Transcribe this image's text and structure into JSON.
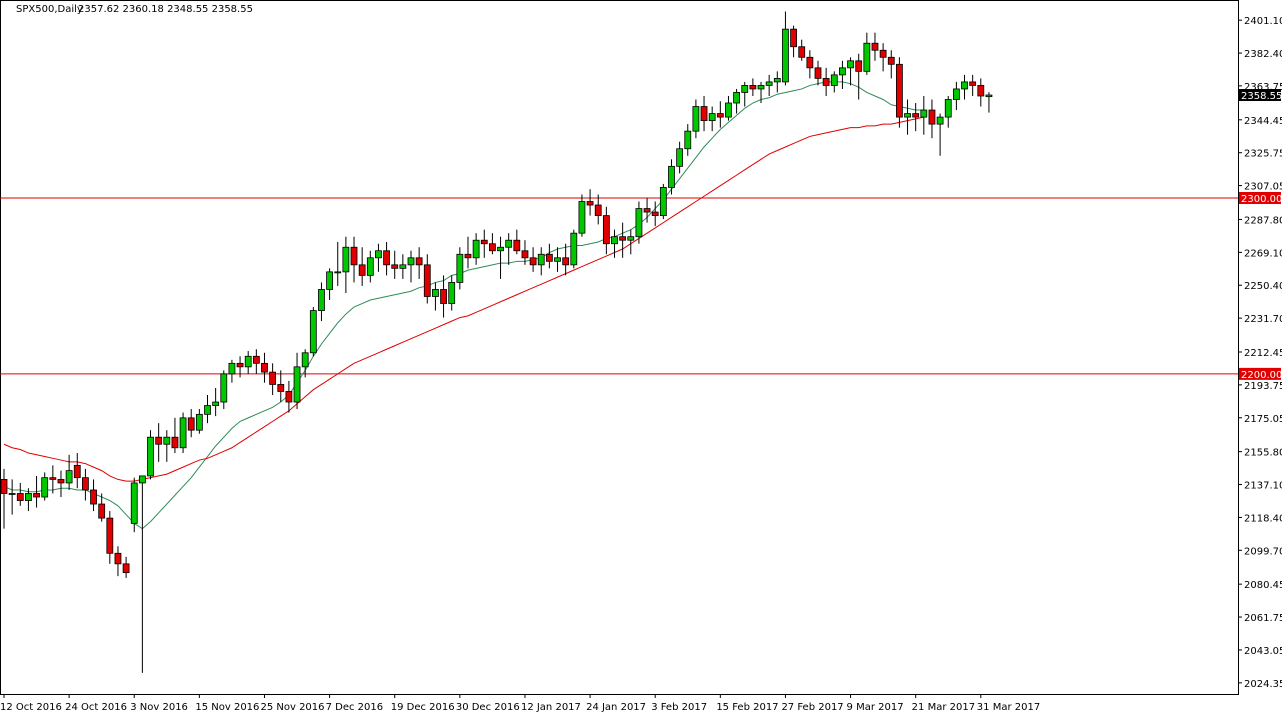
{
  "chart_header": {
    "symbol": "SPX500,Daily",
    "ohlc": "2357.62 2360.18 2348.55 2358.55"
  },
  "colors": {
    "background": "#ffffff",
    "frame": "#000000",
    "bull_body": "#00c800",
    "bear_body": "#e00000",
    "wick": "#000000",
    "ma_fast": "#2e8b57",
    "ma_slow": "#e00000",
    "level_line": "#e00000",
    "price_tag_bg": "#000000",
    "price_tag_fg": "#ffffff",
    "level_tag_bg": "#e00000",
    "level_tag_fg": "#ffffff"
  },
  "chart_data": {
    "type": "candlestick",
    "title": "SPX500,Daily",
    "ylim": [
      2018.0,
      2412.0
    ],
    "y_ticks": [
      "2401.10",
      "2382.40",
      "2363.75",
      "2344.45",
      "2325.75",
      "2307.05",
      "2287.80",
      "2269.10",
      "2250.40",
      "2231.70",
      "2212.45",
      "2193.75",
      "2175.05",
      "2155.80",
      "2137.10",
      "2118.40",
      "2099.70",
      "2080.45",
      "2061.75",
      "2043.05",
      "2024.35"
    ],
    "x_ticks": [
      {
        "index": 0,
        "label": "12 Oct 2016"
      },
      {
        "index": 8,
        "label": "24 Oct 2016"
      },
      {
        "index": 16,
        "label": "3 Nov 2016"
      },
      {
        "index": 24,
        "label": "15 Nov 2016"
      },
      {
        "index": 32,
        "label": "25 Nov 2016"
      },
      {
        "index": 40,
        "label": "7 Dec 2016"
      },
      {
        "index": 48,
        "label": "19 Dec 2016"
      },
      {
        "index": 56,
        "label": "30 Dec 2016"
      },
      {
        "index": 64,
        "label": "12 Jan 2017"
      },
      {
        "index": 72,
        "label": "24 Jan 2017"
      },
      {
        "index": 80,
        "label": "3 Feb 2017"
      },
      {
        "index": 88,
        "label": "15 Feb 2017"
      },
      {
        "index": 96,
        "label": "27 Feb 2017"
      },
      {
        "index": 104,
        "label": "9 Mar 2017"
      },
      {
        "index": 112,
        "label": "21 Mar 2017"
      },
      {
        "index": 120,
        "label": "31 Mar 2017"
      }
    ],
    "horizontal_levels": [
      {
        "value": 2300.0,
        "label": "2300.00"
      },
      {
        "value": 2200.0,
        "label": "2200.00"
      }
    ],
    "current_price": {
      "value": 2358.55,
      "label": "2358.55"
    },
    "candles": [
      [
        2140,
        2146,
        2112,
        2132
      ],
      [
        2132,
        2140,
        2120,
        2132
      ],
      [
        2132,
        2138,
        2125,
        2128
      ],
      [
        2128,
        2135,
        2122,
        2132
      ],
      [
        2132,
        2142,
        2124,
        2130
      ],
      [
        2130,
        2144,
        2128,
        2141
      ],
      [
        2141,
        2148,
        2132,
        2140
      ],
      [
        2140,
        2145,
        2130,
        2138
      ],
      [
        2138,
        2154,
        2134,
        2145
      ],
      [
        2148,
        2155,
        2135,
        2141
      ],
      [
        2141,
        2146,
        2128,
        2134
      ],
      [
        2134,
        2140,
        2122,
        2126
      ],
      [
        2126,
        2132,
        2116,
        2118
      ],
      [
        2118,
        2122,
        2092,
        2098
      ],
      [
        2098,
        2102,
        2085,
        2092
      ],
      [
        2092,
        2096,
        2084,
        2087
      ],
      [
        2115,
        2141,
        2110,
        2138
      ],
      [
        2138,
        2142,
        2030,
        2142
      ],
      [
        2142,
        2168,
        2140,
        2164
      ],
      [
        2164,
        2172,
        2150,
        2160
      ],
      [
        2160,
        2168,
        2150,
        2164
      ],
      [
        2164,
        2175,
        2155,
        2158
      ],
      [
        2158,
        2178,
        2155,
        2175
      ],
      [
        2175,
        2180,
        2164,
        2168
      ],
      [
        2168,
        2180,
        2166,
        2177
      ],
      [
        2177,
        2188,
        2172,
        2182
      ],
      [
        2182,
        2192,
        2176,
        2184
      ],
      [
        2184,
        2202,
        2180,
        2200
      ],
      [
        2200,
        2208,
        2195,
        2206
      ],
      [
        2206,
        2210,
        2198,
        2204
      ],
      [
        2204,
        2213,
        2200,
        2210
      ],
      [
        2210,
        2214,
        2200,
        2206
      ],
      [
        2206,
        2212,
        2195,
        2201
      ],
      [
        2201,
        2206,
        2188,
        2194
      ],
      [
        2194,
        2202,
        2184,
        2190
      ],
      [
        2190,
        2196,
        2178,
        2184
      ],
      [
        2184,
        2212,
        2180,
        2204
      ],
      [
        2204,
        2214,
        2198,
        2212
      ],
      [
        2212,
        2238,
        2210,
        2236
      ],
      [
        2236,
        2252,
        2230,
        2248
      ],
      [
        2248,
        2260,
        2242,
        2258
      ],
      [
        2258,
        2275,
        2250,
        2258
      ],
      [
        2258,
        2278,
        2246,
        2272
      ],
      [
        2272,
        2278,
        2252,
        2262
      ],
      [
        2262,
        2272,
        2250,
        2256
      ],
      [
        2256,
        2270,
        2252,
        2266
      ],
      [
        2266,
        2274,
        2258,
        2270
      ],
      [
        2270,
        2275,
        2256,
        2262
      ],
      [
        2262,
        2270,
        2254,
        2260
      ],
      [
        2260,
        2268,
        2254,
        2262
      ],
      [
        2262,
        2270,
        2252,
        2266
      ],
      [
        2266,
        2272,
        2254,
        2262
      ],
      [
        2262,
        2268,
        2240,
        2244
      ],
      [
        2244,
        2252,
        2236,
        2248
      ],
      [
        2248,
        2256,
        2232,
        2240
      ],
      [
        2240,
        2256,
        2236,
        2252
      ],
      [
        2252,
        2272,
        2248,
        2268
      ],
      [
        2268,
        2278,
        2260,
        2266
      ],
      [
        2266,
        2280,
        2262,
        2276
      ],
      [
        2276,
        2282,
        2266,
        2274
      ],
      [
        2274,
        2280,
        2268,
        2270
      ],
      [
        2270,
        2278,
        2254,
        2272
      ],
      [
        2272,
        2280,
        2262,
        2276
      ],
      [
        2276,
        2282,
        2268,
        2270
      ],
      [
        2270,
        2276,
        2262,
        2266
      ],
      [
        2266,
        2272,
        2258,
        2262
      ],
      [
        2262,
        2272,
        2256,
        2268
      ],
      [
        2268,
        2274,
        2260,
        2264
      ],
      [
        2264,
        2272,
        2258,
        2266
      ],
      [
        2266,
        2274,
        2256,
        2262
      ],
      [
        2262,
        2282,
        2260,
        2280
      ],
      [
        2280,
        2302,
        2278,
        2298
      ],
      [
        2298,
        2305,
        2290,
        2296
      ],
      [
        2296,
        2302,
        2285,
        2290
      ],
      [
        2290,
        2295,
        2268,
        2274
      ],
      [
        2274,
        2282,
        2266,
        2278
      ],
      [
        2278,
        2286,
        2266,
        2276
      ],
      [
        2276,
        2282,
        2268,
        2278
      ],
      [
        2278,
        2298,
        2274,
        2294
      ],
      [
        2294,
        2300,
        2286,
        2292
      ],
      [
        2292,
        2298,
        2284,
        2290
      ],
      [
        2290,
        2308,
        2288,
        2306
      ],
      [
        2306,
        2322,
        2302,
        2318
      ],
      [
        2318,
        2332,
        2314,
        2328
      ],
      [
        2328,
        2342,
        2324,
        2338
      ],
      [
        2338,
        2356,
        2334,
        2352
      ],
      [
        2352,
        2358,
        2338,
        2344
      ],
      [
        2344,
        2352,
        2338,
        2348
      ],
      [
        2348,
        2355,
        2340,
        2346
      ],
      [
        2346,
        2358,
        2344,
        2354
      ],
      [
        2354,
        2362,
        2348,
        2360
      ],
      [
        2360,
        2366,
        2352,
        2364
      ],
      [
        2364,
        2368,
        2358,
        2362
      ],
      [
        2362,
        2366,
        2354,
        2364
      ],
      [
        2364,
        2370,
        2358,
        2366
      ],
      [
        2366,
        2372,
        2360,
        2368
      ],
      [
        2366,
        2406,
        2364,
        2396
      ],
      [
        2396,
        2398,
        2380,
        2386
      ],
      [
        2386,
        2390,
        2378,
        2380
      ],
      [
        2380,
        2384,
        2368,
        2374
      ],
      [
        2374,
        2378,
        2364,
        2368
      ],
      [
        2368,
        2374,
        2358,
        2364
      ],
      [
        2364,
        2372,
        2360,
        2370
      ],
      [
        2370,
        2378,
        2362,
        2374
      ],
      [
        2374,
        2380,
        2364,
        2378
      ],
      [
        2378,
        2382,
        2356,
        2372
      ],
      [
        2372,
        2394,
        2370,
        2388
      ],
      [
        2388,
        2394,
        2378,
        2384
      ],
      [
        2384,
        2388,
        2372,
        2380
      ],
      [
        2380,
        2384,
        2368,
        2376
      ],
      [
        2376,
        2380,
        2340,
        2346
      ],
      [
        2346,
        2356,
        2336,
        2348
      ],
      [
        2348,
        2354,
        2338,
        2346
      ],
      [
        2346,
        2358,
        2336,
        2350
      ],
      [
        2350,
        2356,
        2334,
        2342
      ],
      [
        2342,
        2348,
        2324,
        2346
      ],
      [
        2346,
        2358,
        2340,
        2356
      ],
      [
        2356,
        2366,
        2350,
        2362
      ],
      [
        2362,
        2370,
        2356,
        2366
      ],
      [
        2366,
        2370,
        2358,
        2364
      ],
      [
        2364,
        2368,
        2352,
        2358
      ],
      [
        2357.62,
        2360.18,
        2348.55,
        2358.55
      ]
    ],
    "series": [
      {
        "name": "MA fast",
        "color": "#2e8b57",
        "values": [
          2136,
          2134,
          2134,
          2133,
          2133,
          2134,
          2134,
          2135,
          2135,
          2134,
          2134,
          2132,
          2130,
          2128,
          2125,
          2120,
          2115,
          2112,
          2116,
          2121,
          2126,
          2131,
          2136,
          2141,
          2147,
          2153,
          2159,
          2164,
          2169,
          2173,
          2175,
          2177,
          2179,
          2181,
          2184,
          2188,
          2195,
          2202,
          2210,
          2217,
          2223,
          2229,
          2234,
          2238,
          2240,
          2242,
          2243,
          2244,
          2245,
          2246,
          2247,
          2249,
          2250,
          2252,
          2253,
          2256,
          2257,
          2259,
          2260,
          2261,
          2262,
          2263,
          2263,
          2264,
          2264,
          2265,
          2266,
          2269,
          2271,
          2272,
          2273,
          2273,
          2274,
          2275,
          2277,
          2278,
          2280,
          2282,
          2285,
          2289,
          2294,
          2299,
          2305,
          2311,
          2317,
          2323,
          2329,
          2334,
          2339,
          2343,
          2347,
          2351,
          2354,
          2356,
          2357,
          2359,
          2360,
          2361,
          2362,
          2364,
          2365,
          2366,
          2366,
          2366,
          2365,
          2363,
          2360,
          2358,
          2356,
          2353,
          2352,
          2351,
          2350,
          2350
        ]
      },
      {
        "name": "MA slow",
        "color": "#e00000",
        "values": [
          2160,
          2158,
          2157,
          2155,
          2154,
          2153,
          2152,
          2151,
          2150,
          2150,
          2149,
          2147,
          2145,
          2142,
          2140,
          2139,
          2139,
          2140,
          2141,
          2142,
          2143,
          2145,
          2147,
          2149,
          2151,
          2152,
          2154,
          2156,
          2158,
          2161,
          2164,
          2167,
          2170,
          2173,
          2176,
          2179,
          2183,
          2187,
          2191,
          2194,
          2197,
          2200,
          2203,
          2206,
          2208,
          2210,
          2212,
          2214,
          2216,
          2218,
          2220,
          2222,
          2224,
          2226,
          2228,
          2230,
          2232,
          2233,
          2235,
          2237,
          2239,
          2241,
          2243,
          2245,
          2247,
          2249,
          2251,
          2253,
          2255,
          2257,
          2259,
          2261,
          2263,
          2265,
          2267,
          2269,
          2271,
          2274,
          2277,
          2280,
          2283,
          2286,
          2289,
          2292,
          2295,
          2298,
          2301,
          2304,
          2307,
          2310,
          2313,
          2316,
          2319,
          2322,
          2325,
          2327,
          2329,
          2331,
          2333,
          2335,
          2336,
          2337,
          2338,
          2339,
          2340,
          2340,
          2341,
          2341,
          2342,
          2342,
          2343,
          2344,
          2345,
          2346
        ]
      }
    ]
  }
}
